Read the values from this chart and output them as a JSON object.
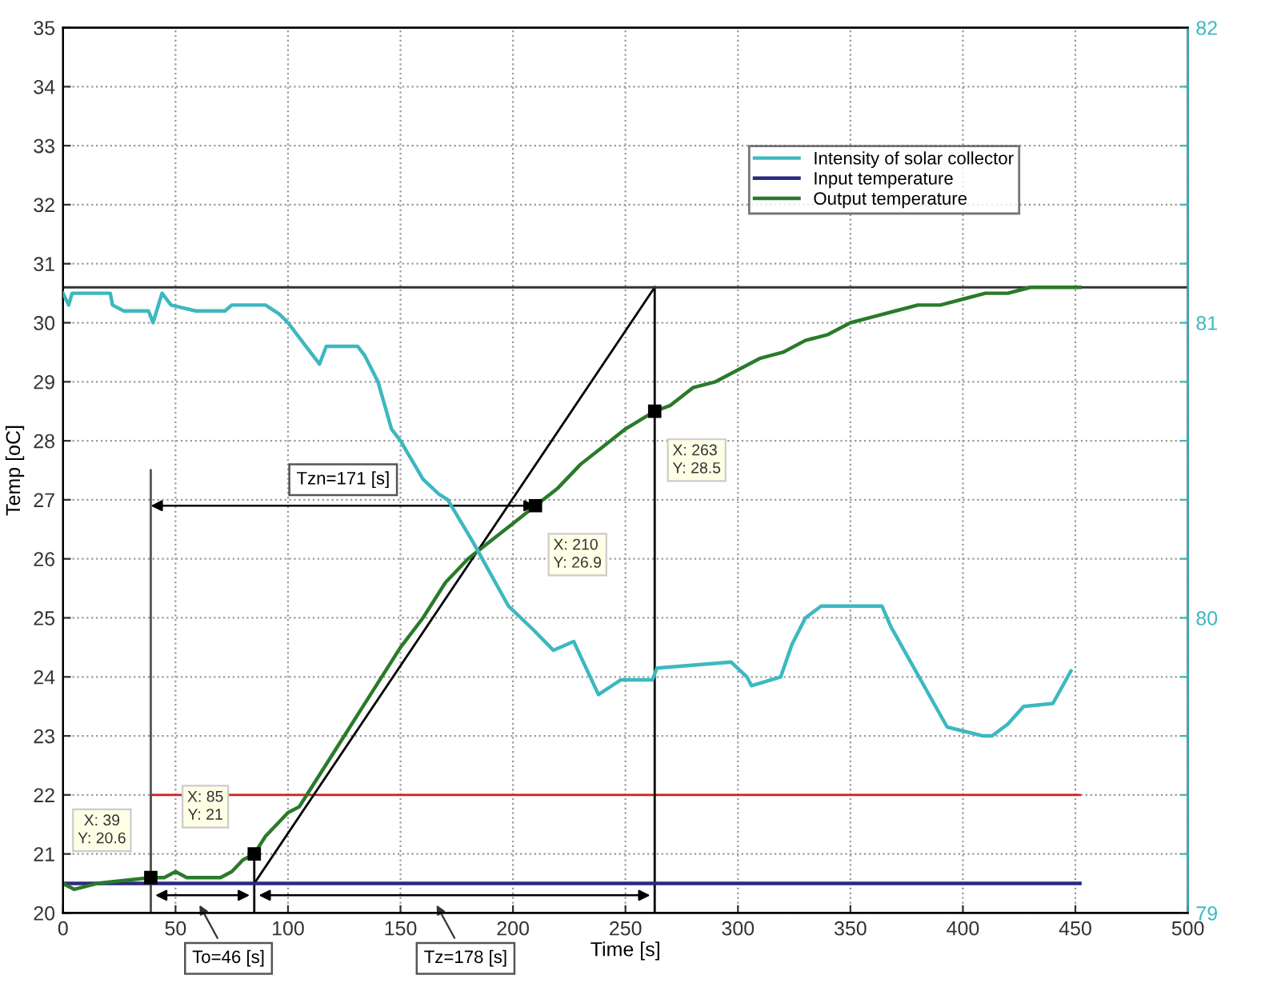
{
  "chart_data": {
    "type": "line",
    "xlabel": "Time [s]",
    "ylabel": "Temp [oC]",
    "xlim": [
      0,
      500
    ],
    "xticks": [
      0,
      50,
      100,
      150,
      200,
      250,
      300,
      350,
      400,
      450,
      500
    ],
    "ylim": [
      20,
      35
    ],
    "yticks": [
      20,
      21,
      22,
      23,
      24,
      25,
      26,
      27,
      28,
      29,
      30,
      31,
      32,
      33,
      34,
      35
    ],
    "y2lim": [
      79,
      82
    ],
    "y2ticks": [
      79,
      {
        "value": 79.2,
        "label": null
      },
      {
        "value": 79.4,
        "label": null
      },
      {
        "value": 79.6,
        "label": null
      },
      {
        "value": 79.8,
        "label": null
      },
      80,
      {
        "value": 80.2,
        "label": null
      },
      {
        "value": 80.4,
        "label": null
      },
      {
        "value": 80.6,
        "label": null
      },
      {
        "value": 80.8,
        "label": null
      },
      81,
      {
        "value": 81.2,
        "label": null
      },
      {
        "value": 81.4,
        "label": null
      },
      {
        "value": 81.6,
        "label": null
      },
      {
        "value": 81.8,
        "label": null
      },
      82
    ],
    "grid": true,
    "legend": "top right",
    "series": [
      {
        "name": "Intensity of solar collector",
        "color": "#3cb8c0",
        "axis": "y2",
        "x": [
          0,
          2.5,
          4,
          21,
          22,
          27,
          38,
          40,
          44,
          48,
          59,
          72,
          75,
          90,
          96,
          100,
          108,
          114,
          117,
          131,
          134,
          140,
          146,
          150,
          160,
          167,
          171,
          182,
          198,
          209,
          218,
          227,
          238,
          248,
          262,
          264,
          297,
          304,
          306,
          319,
          324,
          330,
          337,
          364,
          368,
          393,
          409,
          413,
          420,
          427,
          440,
          448
        ],
        "values": [
          81.1,
          81.06,
          81.1,
          81.1,
          81.06,
          81.04,
          81.04,
          81.0,
          81.1,
          81.06,
          81.04,
          81.04,
          81.06,
          81.06,
          81.03,
          81.0,
          80.92,
          80.86,
          80.92,
          80.92,
          80.89,
          80.8,
          80.64,
          80.6,
          80.47,
          80.42,
          80.4,
          80.26,
          80.04,
          79.96,
          79.89,
          79.92,
          79.74,
          79.79,
          79.79,
          79.83,
          79.85,
          79.8,
          79.77,
          79.8,
          79.91,
          80.0,
          80.04,
          80.04,
          79.97,
          79.63,
          79.6,
          79.6,
          79.64,
          79.7,
          79.71,
          79.82
        ]
      },
      {
        "name": "Input temperature",
        "color": "#2b2b80",
        "x": [
          0,
          452
        ],
        "values": [
          20.5,
          20.5
        ]
      },
      {
        "name": "Output temperature",
        "color": "#2a7a2a",
        "x": [
          0,
          5,
          15,
          39,
          45,
          50,
          55,
          70,
          75,
          80,
          85,
          90,
          95,
          100,
          105,
          110,
          120,
          130,
          140,
          150,
          160,
          170,
          180,
          190,
          200,
          210,
          220,
          230,
          240,
          250,
          263,
          270,
          280,
          290,
          300,
          310,
          320,
          330,
          340,
          350,
          360,
          370,
          380,
          390,
          400,
          410,
          420,
          430,
          440,
          452
        ],
        "values": [
          20.5,
          20.4,
          20.5,
          20.6,
          20.6,
          20.7,
          20.6,
          20.6,
          20.7,
          20.9,
          21.0,
          21.3,
          21.5,
          21.7,
          21.8,
          22.1,
          22.7,
          23.3,
          23.9,
          24.5,
          25.0,
          25.6,
          26.0,
          26.3,
          26.6,
          26.9,
          27.2,
          27.6,
          27.9,
          28.2,
          28.5,
          28.6,
          28.9,
          29.0,
          29.2,
          29.4,
          29.5,
          29.7,
          29.8,
          30.0,
          30.1,
          30.2,
          30.3,
          30.3,
          30.4,
          30.5,
          30.5,
          30.6,
          30.6,
          30.6
        ]
      },
      {
        "color": "#cc2222",
        "x": [
          0,
          39,
          39,
          452
        ],
        "values": [
          20,
          20,
          22,
          22
        ]
      },
      {
        "color": "#000000",
        "x": [
          85,
          263
        ],
        "values": [
          20.5,
          30.6
        ]
      },
      {
        "color": "#555555",
        "x": [
          39,
          39
        ],
        "values": [
          20,
          27.5
        ]
      },
      {
        "color": "#000000",
        "x": [
          85,
          85
        ],
        "values": [
          20,
          21
        ]
      },
      {
        "color": "#000000",
        "x": [
          263,
          263
        ],
        "values": [
          20,
          30.6
        ]
      }
    ],
    "ref_lines": [
      {
        "axis": "y",
        "value": 30.6,
        "color": "#333333"
      }
    ],
    "annotations": [
      {
        "text": "X: 39\nY: 20.6",
        "x": 39,
        "y": 20.6
      },
      {
        "text": "X: 85\nY: 21",
        "x": 85,
        "y": 21
      },
      {
        "text": "X: 210\nY: 26.9",
        "x": 210,
        "y": 26.9
      },
      {
        "text": "X: 263\nY: 28.5",
        "x": 263,
        "y": 28.5
      },
      "Tzn=171 [s]",
      "To=46 [s]",
      "Tz=178 [s]"
    ]
  }
}
